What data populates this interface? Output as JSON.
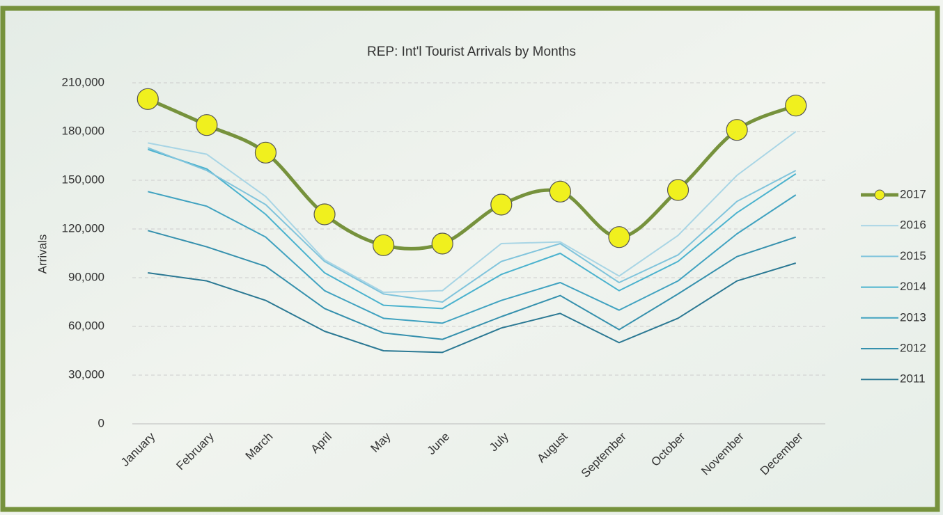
{
  "chart_data": {
    "type": "line",
    "title": "REP: Int'l Tourist Arrivals by Months",
    "y_label": "Arrivals",
    "categories": [
      "January",
      "February",
      "March",
      "April",
      "May",
      "June",
      "July",
      "August",
      "September",
      "October",
      "November",
      "December"
    ],
    "ylim": [
      0,
      210000
    ],
    "yticks": [
      0,
      {
        "value": 30000,
        "label": "30,000"
      },
      {
        "value": 60000,
        "label": "60,000"
      },
      {
        "value": 90000,
        "label": "90,000"
      },
      {
        "value": 120000,
        "label": "120,000"
      },
      {
        "value": 150000,
        "label": "150,000"
      },
      {
        "value": 180000,
        "label": "180,000"
      },
      {
        "value": 210000,
        "label": "210,000"
      }
    ],
    "grid": true,
    "legend": "right",
    "series": [
      {
        "name": "2017",
        "color": "#76923c",
        "marker_color": "#f0f01e",
        "smooth": true,
        "values": [
          200000,
          184000,
          167000,
          129000,
          110000,
          111000,
          135000,
          143000,
          115000,
          144000,
          181000,
          196000
        ]
      },
      {
        "name": "2016",
        "color": "#a8d5e5",
        "values": [
          173000,
          166000,
          140000,
          101000,
          81000,
          82000,
          111000,
          112000,
          91000,
          116000,
          153000,
          180000
        ]
      },
      {
        "name": "2015",
        "color": "#80c4dc",
        "values": [
          170000,
          156000,
          135000,
          100000,
          80000,
          75000,
          100000,
          111000,
          87000,
          104000,
          137000,
          156000
        ]
      },
      {
        "name": "2014",
        "color": "#4ab2ce",
        "values": [
          169000,
          157000,
          129000,
          93000,
          73000,
          71000,
          92000,
          105000,
          82000,
          100000,
          130000,
          154000
        ]
      },
      {
        "name": "2013",
        "color": "#40a2c0",
        "values": [
          143000,
          134000,
          115000,
          82000,
          65000,
          62000,
          76000,
          87000,
          70000,
          88000,
          117000,
          141000
        ]
      },
      {
        "name": "2012",
        "color": "#3590ad",
        "values": [
          119000,
          109000,
          97000,
          71000,
          56000,
          52000,
          66000,
          79000,
          58000,
          80000,
          103000,
          115000
        ]
      },
      {
        "name": "2011",
        "color": "#2a7893",
        "values": [
          93000,
          88000,
          76000,
          57000,
          45000,
          44000,
          59000,
          68000,
          50000,
          65000,
          88000,
          99000
        ]
      }
    ]
  }
}
